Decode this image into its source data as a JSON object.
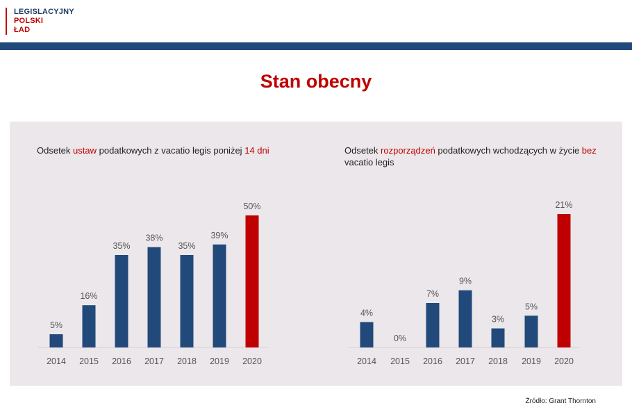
{
  "header": {
    "logo_line1": "LEGISLACYJNY",
    "logo_line2": "POLSKI",
    "logo_line3": "ŁAD",
    "title": "Stan obecny"
  },
  "colors": {
    "bar": "#21497a",
    "highlight": "#c00000",
    "panel": "#ebe7ea",
    "topbar": "#21497a"
  },
  "charts": [
    {
      "title_parts": [
        {
          "text": "Odsetek ",
          "hl": false
        },
        {
          "text": "ustaw",
          "hl": true
        },
        {
          "text": " podatkowych z vacatio legis poniżej ",
          "hl": false
        },
        {
          "text": "14 dni",
          "hl": true
        }
      ]
    },
    {
      "title_parts": [
        {
          "text": "Odsetek ",
          "hl": false
        },
        {
          "text": "rozporządzeń",
          "hl": true
        },
        {
          "text": " podatkowych wchodzących w życie ",
          "hl": false
        },
        {
          "text": "bez",
          "hl": true
        },
        {
          "text": " vacatio legis",
          "hl": false
        }
      ]
    }
  ],
  "chart_data": [
    {
      "type": "bar",
      "categories": [
        "2014",
        "2015",
        "2016",
        "2017",
        "2018",
        "2019",
        "2020"
      ],
      "values": [
        5,
        16,
        35,
        38,
        35,
        39,
        50
      ],
      "data_labels": [
        "5%",
        "16%",
        "35%",
        "38%",
        "35%",
        "39%",
        "50%"
      ],
      "highlight_category": "2020",
      "ylim": [
        0,
        50
      ],
      "grid": false
    },
    {
      "type": "bar",
      "categories": [
        "2014",
        "2015",
        "2016",
        "2017",
        "2018",
        "2019",
        "2020"
      ],
      "values": [
        4,
        0,
        7,
        9,
        3,
        5,
        21
      ],
      "data_labels": [
        "4%",
        "0%",
        "7%",
        "9%",
        "3%",
        "5%",
        "21%"
      ],
      "highlight_category": "2020",
      "ylim": [
        0,
        21
      ],
      "grid": false
    }
  ],
  "source": "Źródło: Grant Thornton"
}
